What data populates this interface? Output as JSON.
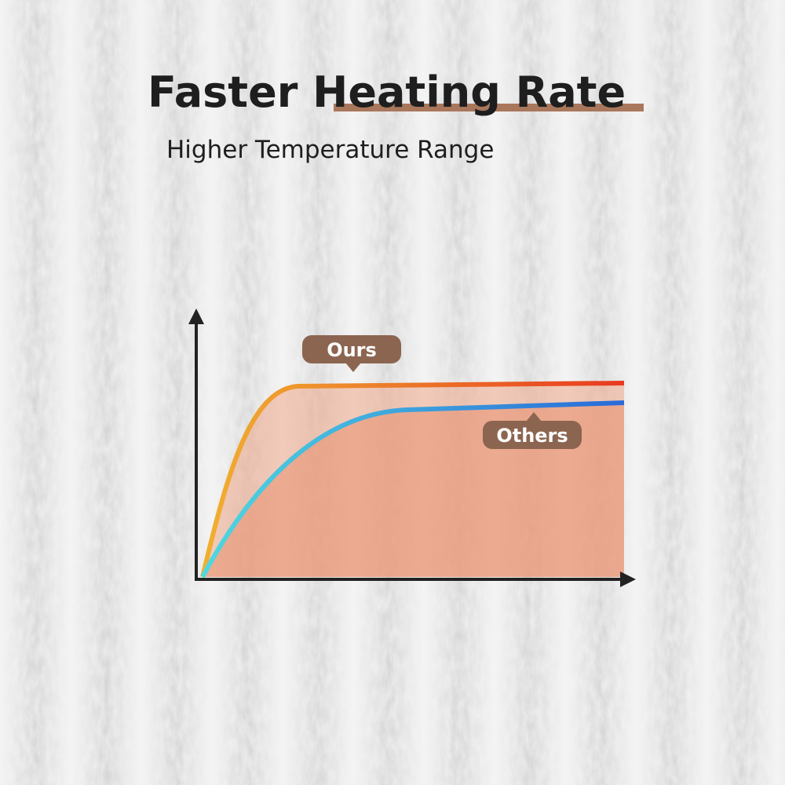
{
  "header": {
    "title": "Faster Heating Rate",
    "subtitle": "Higher Temperature Range"
  },
  "diagram": {
    "labels": [
      "Ours",
      "Others"
    ]
  }
}
